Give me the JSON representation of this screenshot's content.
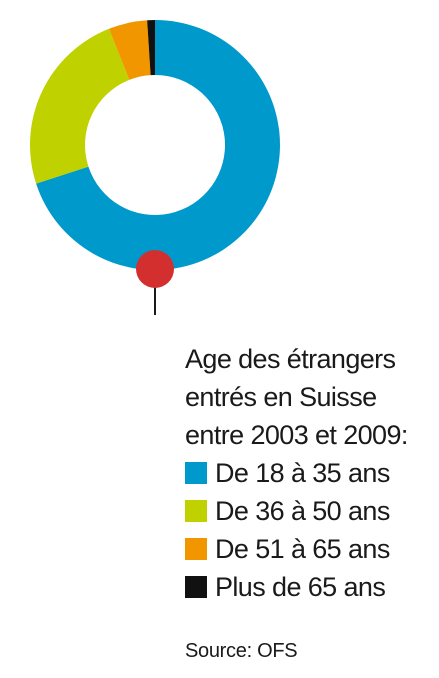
{
  "chart_data": {
    "type": "pie",
    "style": "donut",
    "title_lines": [
      "Age des étrangers",
      "entrés en Suisse",
      "entre 2003 et 2009:"
    ],
    "categories": [
      "De 18 à 35 ans",
      "De 36 à 50 ans",
      "De 51 à 65 ans",
      "Plus de 65 ans"
    ],
    "values": [
      70,
      24,
      5,
      1
    ],
    "colors": [
      "#0099cc",
      "#bfd200",
      "#f29600",
      "#111111"
    ],
    "marker_color": "#d32f2f",
    "legend_position": "bottom-right"
  },
  "source": "Source: OFS"
}
